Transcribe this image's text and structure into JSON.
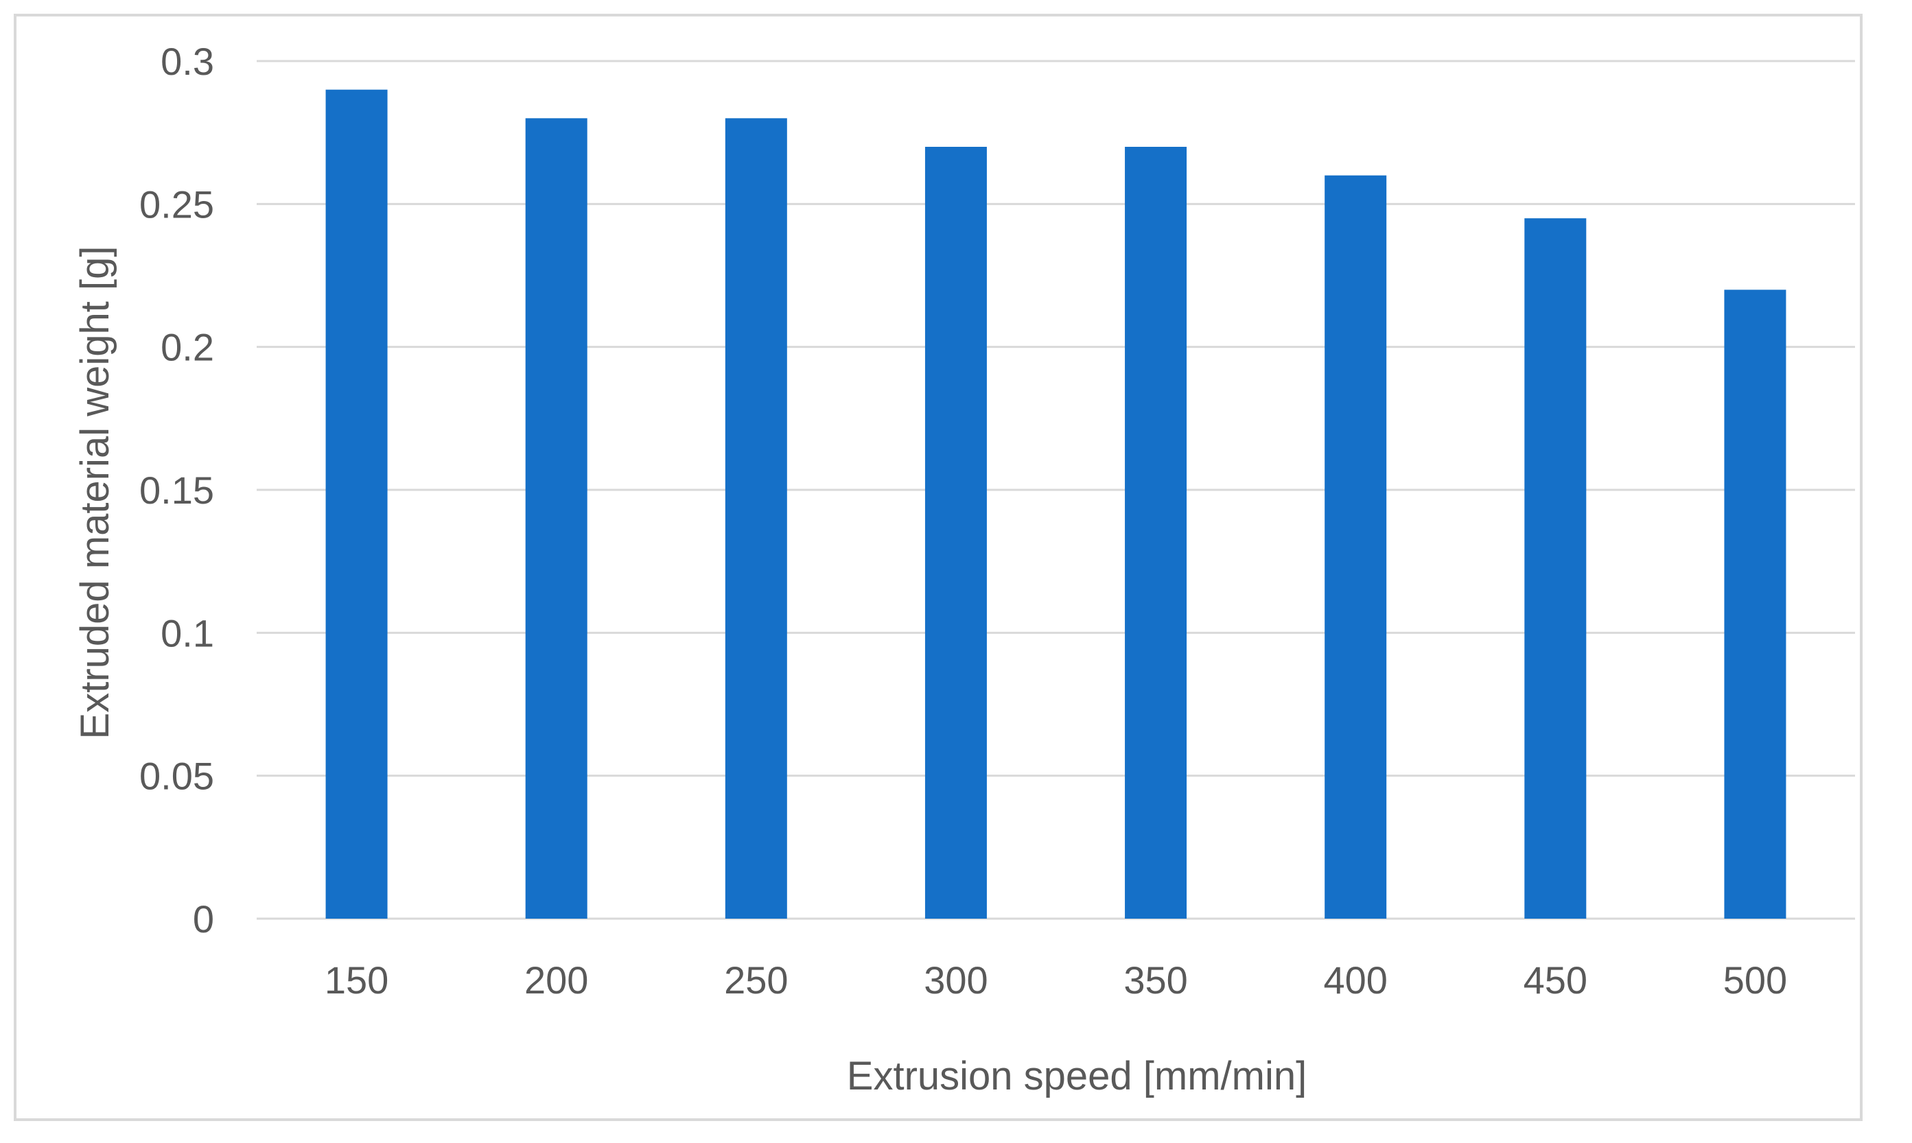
{
  "chart_data": {
    "type": "bar",
    "categories": [
      "150",
      "200",
      "250",
      "300",
      "350",
      "400",
      "450",
      "500"
    ],
    "series": [
      {
        "values": [
          0.29,
          0.28,
          0.28,
          0.27,
          0.27,
          0.26,
          0.245,
          0.22
        ],
        "color": "#1570c8"
      }
    ],
    "title": "",
    "xlabel": "Extrusion speed [mm/min]",
    "ylabel": "Extruded material weight  [g]",
    "ylim": [
      0,
      0.3
    ],
    "yticks": [
      "0",
      "0.05",
      "0.1",
      "0.15",
      "0.2",
      "0.25",
      "0.3"
    ],
    "grid": true,
    "gridColor": "#d9d9d9",
    "textColor": "#595959",
    "legend": "none"
  }
}
